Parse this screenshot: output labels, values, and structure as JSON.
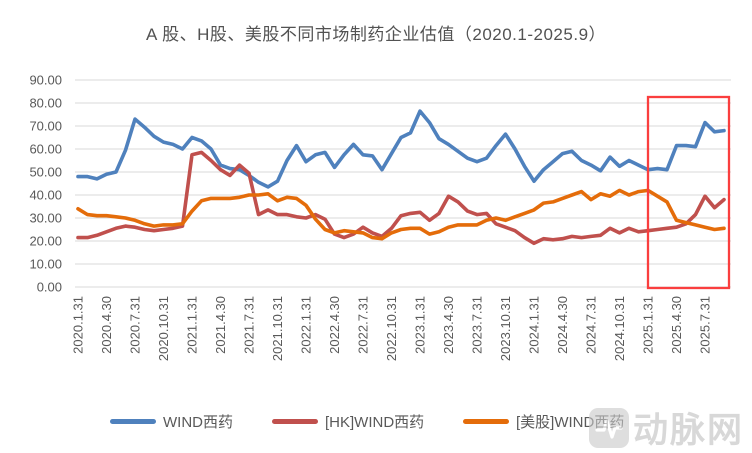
{
  "page": {
    "background": "#FFFFFF"
  },
  "chart_data": {
    "type": "line",
    "title": "A 股、H股、美股不同市场制药企业估值（2020.1-2025.9）",
    "ylim": [
      0,
      90
    ],
    "y_tick_step": 10,
    "y_tick_labels": [
      "0.00",
      "10.00",
      "20.00",
      "30.00",
      "40.00",
      "50.00",
      "60.00",
      "70.00",
      "80.00",
      "90.00"
    ],
    "x_tick_labels": [
      "2020.1.31",
      "2020.4.30",
      "2020.7.31",
      "2020.10.31",
      "2021.1.31",
      "2021.4.30",
      "2021.7.31",
      "2021.10.31",
      "2022.1.31",
      "2022.4.30",
      "2022.7.31",
      "2022.10.31",
      "2023.1.31",
      "2023.4.30",
      "2023.7.31",
      "2023.10.31",
      "2024.1.31",
      "2024.4.30",
      "2024.7.31",
      "2024.10.31",
      "2025.1.31",
      "2025.4.30",
      "2025.7.31"
    ],
    "x_tick_every": 3,
    "grid": "horizontal",
    "gridline_color": "#D9D9D9",
    "axis_text_color": "#595959",
    "legend_position": "bottom",
    "months": [
      "2020.1",
      "2020.2",
      "2020.3",
      "2020.4",
      "2020.5",
      "2020.6",
      "2020.7",
      "2020.8",
      "2020.9",
      "2020.10",
      "2020.11",
      "2020.12",
      "2021.1",
      "2021.2",
      "2021.3",
      "2021.4",
      "2021.5",
      "2021.6",
      "2021.7",
      "2021.8",
      "2021.9",
      "2021.10",
      "2021.11",
      "2021.12",
      "2022.1",
      "2022.2",
      "2022.3",
      "2022.4",
      "2022.5",
      "2022.6",
      "2022.7",
      "2022.8",
      "2022.9",
      "2022.10",
      "2022.11",
      "2022.12",
      "2023.1",
      "2023.2",
      "2023.3",
      "2023.4",
      "2023.5",
      "2023.6",
      "2023.7",
      "2023.8",
      "2023.9",
      "2023.10",
      "2023.11",
      "2023.12",
      "2024.1",
      "2024.2",
      "2024.3",
      "2024.4",
      "2024.5",
      "2024.6",
      "2024.7",
      "2024.8",
      "2024.9",
      "2024.10",
      "2024.11",
      "2024.12",
      "2025.1",
      "2025.2",
      "2025.3",
      "2025.4",
      "2025.5",
      "2025.6",
      "2025.7",
      "2025.8",
      "2025.9"
    ],
    "series": [
      {
        "name": "WIND西药",
        "color": "#4F81BD",
        "values": [
          48,
          48,
          47,
          49,
          50,
          59.5,
          73,
          69.5,
          65.5,
          63,
          62,
          60,
          65,
          63.5,
          60,
          53,
          51.5,
          51,
          48.5,
          45.5,
          43.5,
          46,
          55,
          61.5,
          54.5,
          57.5,
          58.5,
          52,
          57.5,
          62,
          57.5,
          57,
          51,
          58,
          65,
          67,
          76.5,
          71.5,
          64.5,
          62,
          59,
          56,
          54.5,
          56,
          61.5,
          66.5,
          60,
          52.5,
          46,
          51,
          54.5,
          58,
          59,
          55,
          53,
          50.5,
          56.5,
          52.5,
          55,
          53,
          51,
          51.5,
          51,
          61.5,
          61.5,
          61,
          71.5,
          67.5,
          68
        ]
      },
      {
        "name": "[HK]WIND西药",
        "color": "#C0504D",
        "values": [
          21.5,
          21.5,
          22.5,
          24,
          25.5,
          26.5,
          26,
          25,
          24.5,
          25,
          25.5,
          26.5,
          57.5,
          58.5,
          55,
          51,
          48.5,
          53,
          49.5,
          31.5,
          33.5,
          31.5,
          31.5,
          30.5,
          30,
          31.5,
          29.5,
          23,
          21.5,
          23,
          26,
          23.5,
          22,
          25.5,
          31,
          32,
          32.5,
          29,
          32,
          39.5,
          37,
          33,
          31.5,
          32,
          27.5,
          26,
          24.5,
          21.5,
          19,
          21,
          20.5,
          21,
          22,
          21.5,
          22,
          22.5,
          25.5,
          23.5,
          25.5,
          24,
          24.5,
          25,
          25.5,
          26,
          27.5,
          31.5,
          39.5,
          34.5,
          38
        ]
      },
      {
        "name": "[美股]WIND西药",
        "color": "#E46C0A",
        "values": [
          34,
          31.5,
          31,
          31,
          30.5,
          30,
          29,
          27.5,
          26.5,
          27,
          27,
          27.5,
          33,
          37.5,
          38.5,
          38.5,
          38.5,
          39,
          40,
          40,
          40.5,
          37.5,
          39,
          38.5,
          35.5,
          29.5,
          25,
          23.5,
          24.5,
          24,
          23.5,
          21.5,
          21,
          23.5,
          25,
          25.5,
          25.5,
          23,
          24,
          26,
          27,
          27,
          27,
          29,
          30,
          29,
          30.5,
          32,
          33.5,
          36.5,
          37,
          38.5,
          40,
          41.5,
          38,
          40.5,
          39.5,
          42,
          40,
          41.5,
          42,
          39.5,
          37,
          29,
          28,
          27,
          26,
          25,
          25.5
        ]
      }
    ],
    "highlight_box": {
      "from_month": "2025.1",
      "to_month": "2025.9",
      "color": "#FA3E3E"
    }
  },
  "watermark": {
    "text": "动脉网",
    "icon": "vcbeat-logo-icon"
  }
}
